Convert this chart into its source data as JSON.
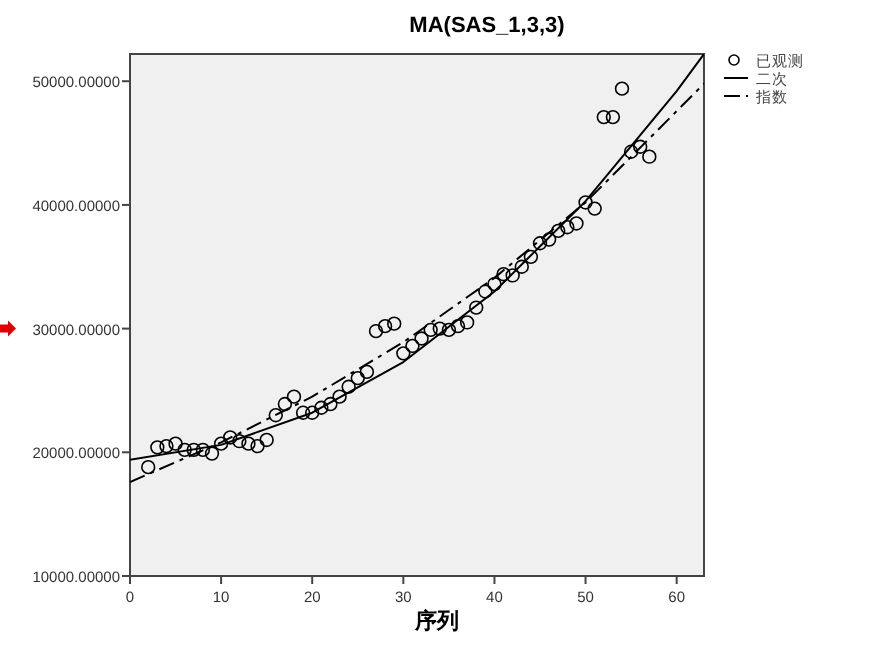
{
  "chart_data": {
    "type": "scatter",
    "title": "MA(SAS_1,3,3)",
    "xlabel": "序列",
    "xlim": [
      0,
      63
    ],
    "ylim": [
      10000,
      52200
    ],
    "xticks": [
      0,
      10,
      20,
      30,
      40,
      50,
      60
    ],
    "yticks": [
      {
        "value": 10000,
        "label": "10000.00000"
      },
      {
        "value": 20000,
        "label": "20000.00000"
      },
      {
        "value": 30000,
        "label": "30000.00000"
      },
      {
        "value": 40000,
        "label": "40000.00000"
      },
      {
        "value": 50000,
        "label": "50000.00000"
      }
    ],
    "grid": false,
    "legend": "top right",
    "series": [
      {
        "name": "已观测",
        "marker": "circle",
        "color": "#000000",
        "x": [
          2,
          3,
          4,
          5,
          6,
          7,
          8,
          9,
          10,
          11,
          12,
          13,
          14,
          15,
          16,
          17,
          18,
          19,
          20,
          21,
          22,
          23,
          24,
          25,
          26,
          27,
          28,
          29,
          30,
          31,
          32,
          33,
          34,
          35,
          36,
          37,
          38,
          39,
          40,
          41,
          42,
          43,
          44,
          45,
          46,
          47,
          48,
          49,
          50,
          51,
          52,
          53,
          54,
          55,
          56,
          57
        ],
        "values": [
          18800,
          20400,
          20500,
          20700,
          20200,
          20200,
          20200,
          19900,
          20700,
          21200,
          20900,
          20700,
          20500,
          21000,
          23000,
          23900,
          24500,
          23200,
          23200,
          23600,
          23900,
          24500,
          25300,
          26000,
          26500,
          29800,
          30200,
          30400,
          28000,
          28600,
          29200,
          29900,
          30000,
          29900,
          30200,
          30500,
          31700,
          33000,
          33600,
          34400,
          34300,
          35000,
          35800,
          36900,
          37200,
          37900,
          38200,
          38500,
          40200,
          39700,
          47100,
          47100,
          49400,
          44300,
          44700,
          43900
        ]
      },
      {
        "name": "二次",
        "type": "line",
        "color": "#000000",
        "line_style": "solid",
        "x": [
          0,
          10,
          20,
          30,
          40,
          50,
          60,
          63
        ],
        "values": [
          19400,
          20600,
          23200,
          27300,
          33000,
          40300,
          49200,
          52200
        ]
      },
      {
        "name": "指数",
        "type": "line",
        "color": "#000000",
        "line_style": "dashed",
        "x": [
          0,
          10,
          20,
          30,
          40,
          50,
          63
        ],
        "values": [
          17600,
          20800,
          24500,
          28900,
          34100,
          40200,
          49800
        ]
      }
    ]
  }
}
